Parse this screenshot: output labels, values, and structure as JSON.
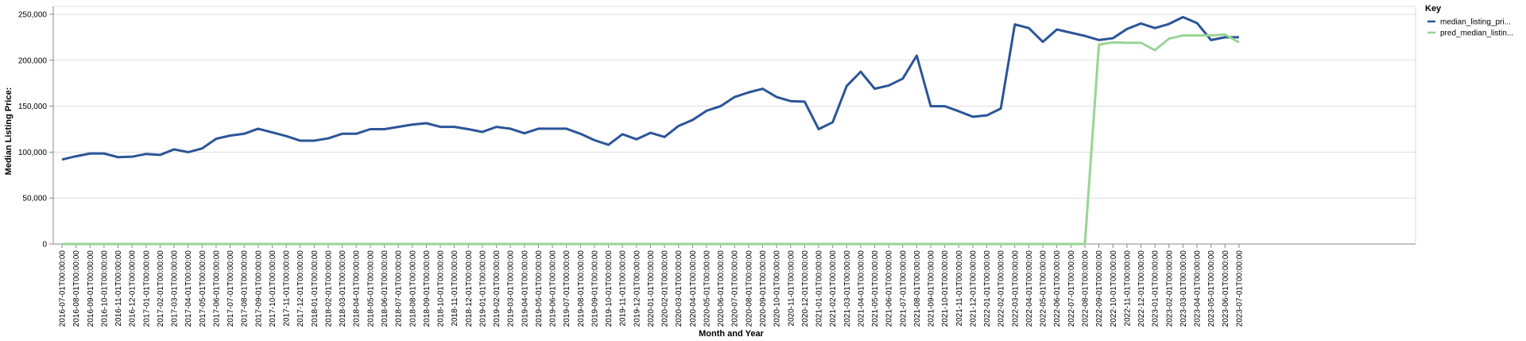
{
  "chart_data": {
    "type": "line",
    "xlabel": "Month and Year",
    "ylabel": "Median Listing Price:",
    "ylim": [
      0,
      250000
    ],
    "y_ticks": [
      0,
      50000,
      100000,
      150000,
      200000,
      250000
    ],
    "y_tick_labels": [
      "0",
      "50,000",
      "100,000",
      "150,000",
      "200,000",
      "250,000"
    ],
    "grid": true,
    "legend": {
      "title": "Key",
      "placement": "top-right",
      "entries": [
        "median_listing_pri...",
        "pred_median_listin..."
      ]
    },
    "x": [
      "2016-07-01T00:00:00",
      "2016-08-01T00:00:00",
      "2016-09-01T00:00:00",
      "2016-10-01T00:00:00",
      "2016-11-01T00:00:00",
      "2016-12-01T00:00:00",
      "2017-01-01T00:00:00",
      "2017-02-01T00:00:00",
      "2017-03-01T00:00:00",
      "2017-04-01T00:00:00",
      "2017-05-01T00:00:00",
      "2017-06-01T00:00:00",
      "2017-07-01T00:00:00",
      "2017-08-01T00:00:00",
      "2017-09-01T00:00:00",
      "2017-10-01T00:00:00",
      "2017-11-01T00:00:00",
      "2017-12-01T00:00:00",
      "2018-01-01T00:00:00",
      "2018-02-01T00:00:00",
      "2018-03-01T00:00:00",
      "2018-04-01T00:00:00",
      "2018-05-01T00:00:00",
      "2018-06-01T00:00:00",
      "2018-07-01T00:00:00",
      "2018-08-01T00:00:00",
      "2018-09-01T00:00:00",
      "2018-10-01T00:00:00",
      "2018-11-01T00:00:00",
      "2018-12-01T00:00:00",
      "2019-01-01T00:00:00",
      "2019-02-01T00:00:00",
      "2019-03-01T00:00:00",
      "2019-04-01T00:00:00",
      "2019-05-01T00:00:00",
      "2019-06-01T00:00:00",
      "2019-07-01T00:00:00",
      "2019-08-01T00:00:00",
      "2019-09-01T00:00:00",
      "2019-10-01T00:00:00",
      "2019-11-01T00:00:00",
      "2019-12-01T00:00:00",
      "2020-01-01T00:00:00",
      "2020-02-01T00:00:00",
      "2020-03-01T00:00:00",
      "2020-04-01T00:00:00",
      "2020-05-01T00:00:00",
      "2020-06-01T00:00:00",
      "2020-07-01T00:00:00",
      "2020-08-01T00:00:00",
      "2020-09-01T00:00:00",
      "2020-10-01T00:00:00",
      "2020-11-01T00:00:00",
      "2020-12-01T00:00:00",
      "2021-01-01T00:00:00",
      "2021-02-01T00:00:00",
      "2021-03-01T00:00:00",
      "2021-04-01T00:00:00",
      "2021-05-01T00:00:00",
      "2021-06-01T00:00:00",
      "2021-07-01T00:00:00",
      "2021-08-01T00:00:00",
      "2021-09-01T00:00:00",
      "2021-10-01T00:00:00",
      "2021-11-01T00:00:00",
      "2021-12-01T00:00:00",
      "2022-01-01T00:00:00",
      "2022-02-01T00:00:00",
      "2022-03-01T00:00:00",
      "2022-04-01T00:00:00",
      "2022-05-01T00:00:00",
      "2022-06-01T00:00:00",
      "2022-07-01T00:00:00",
      "2022-08-01T00:00:00",
      "2022-09-01T00:00:00",
      "2022-10-01T00:00:00",
      "2022-11-01T00:00:00",
      "2022-12-01T00:00:00",
      "2023-01-01T00:00:00",
      "2023-02-01T00:00:00",
      "2023-03-01T00:00:00",
      "2023-04-01T00:00:00",
      "2023-05-01T00:00:00",
      "2023-06-01T00:00:00",
      "2023-07-01T00:00:00"
    ],
    "series": [
      {
        "name": "median_listing_pri...",
        "color": "#2b5597",
        "values": [
          92000,
          95500,
          98500,
          98500,
          94500,
          95000,
          98000,
          97000,
          103000,
          100000,
          104000,
          114500,
          118000,
          120000,
          125500,
          121500,
          117500,
          112500,
          112500,
          115000,
          120000,
          120000,
          125000,
          125000,
          127500,
          130000,
          131500,
          127500,
          127500,
          125000,
          122000,
          127500,
          125500,
          120500,
          125500,
          125500,
          125500,
          120000,
          113000,
          108000,
          119500,
          114000,
          121000,
          116500,
          128500,
          135000,
          145000,
          150000,
          160000,
          165000,
          169000,
          160000,
          155500,
          155000,
          125000,
          132500,
          172000,
          187500,
          169000,
          172500,
          180000,
          205000,
          150000,
          150000,
          144500,
          138500,
          140000,
          147500,
          239000,
          235000,
          220000,
          233500,
          230000,
          226500,
          222000,
          224000,
          234000,
          240000,
          235000,
          239500,
          247000,
          240500,
          222000,
          225000,
          225000
        ]
      },
      {
        "name": "pred_median_listin...",
        "color": "#98d595",
        "values": [
          0,
          0,
          0,
          0,
          0,
          0,
          0,
          0,
          0,
          0,
          0,
          0,
          0,
          0,
          0,
          0,
          0,
          0,
          0,
          0,
          0,
          0,
          0,
          0,
          0,
          0,
          0,
          0,
          0,
          0,
          0,
          0,
          0,
          0,
          0,
          0,
          0,
          0,
          0,
          0,
          0,
          0,
          0,
          0,
          0,
          0,
          0,
          0,
          0,
          0,
          0,
          0,
          0,
          0,
          0,
          0,
          0,
          0,
          0,
          0,
          0,
          0,
          0,
          0,
          0,
          0,
          0,
          0,
          0,
          0,
          0,
          0,
          0,
          0,
          217000,
          219500,
          219000,
          219000,
          211000,
          223500,
          227000,
          227000,
          227000,
          228000,
          219500
        ]
      }
    ]
  }
}
